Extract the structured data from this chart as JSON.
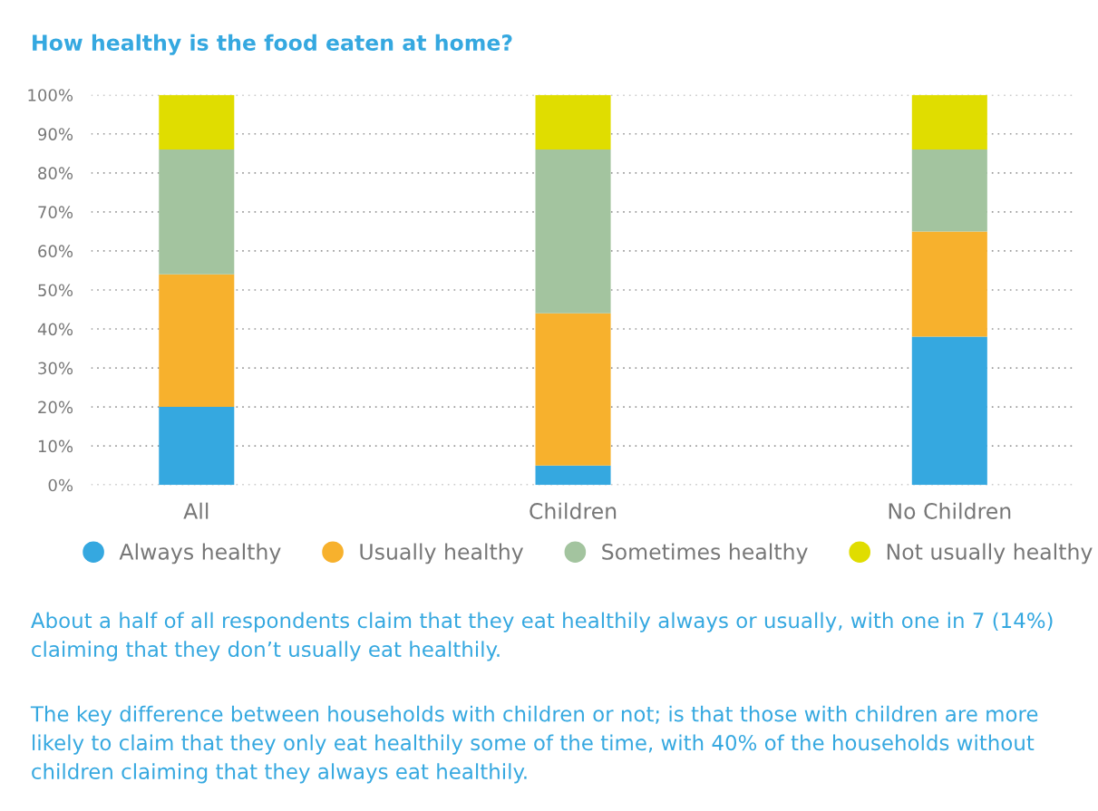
{
  "chart_data": {
    "type": "bar",
    "title": "How healthy is the food eaten at home?",
    "categories": [
      "All",
      "Children",
      "No Children"
    ],
    "stacked": true,
    "series": [
      {
        "name": "Always healthy",
        "color": "#35a8e0",
        "values": [
          20,
          5,
          38
        ]
      },
      {
        "name": "Usually healthy",
        "color": "#f7b12d",
        "values": [
          34,
          39,
          27
        ]
      },
      {
        "name": "Sometimes healthy",
        "color": "#a3c49f",
        "values": [
          32,
          42,
          21
        ]
      },
      {
        "name": "Not usually healthy",
        "color": "#e0dd00",
        "values": [
          14,
          14,
          14
        ]
      }
    ],
    "ylim": [
      0,
      100
    ],
    "yticks": [
      {
        "value": 0,
        "label": "0%"
      },
      {
        "value": 10,
        "label": "10%"
      },
      {
        "value": 20,
        "label": "20%"
      },
      {
        "value": 30,
        "label": "30%"
      },
      {
        "value": 40,
        "label": "40%"
      },
      {
        "value": 50,
        "label": "50%"
      },
      {
        "value": 60,
        "label": "60%"
      },
      {
        "value": 70,
        "label": "70%"
      },
      {
        "value": 80,
        "label": "80%"
      },
      {
        "value": 90,
        "label": "90%"
      },
      {
        "value": 100,
        "label": "100%"
      }
    ],
    "grid": "y",
    "legend": "bottom",
    "annotations": [
      "About a half of all respondents claim that they eat healthily always or usually, with one in 7 (14%) claiming that they don’t usually eat healthily.",
      "The key difference between households with children or not; is that those with children are more likely to claim that they only eat healthily some of the time, with 40% of the households without children claiming that they always eat healthily."
    ]
  }
}
